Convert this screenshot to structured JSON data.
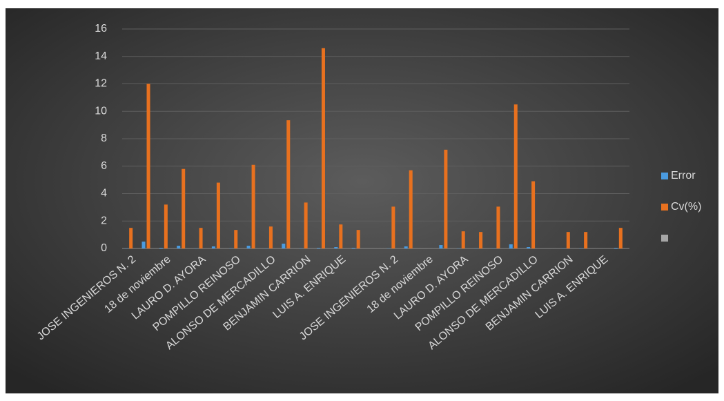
{
  "chart_data": {
    "type": "bar",
    "categories": [
      "JOSE INGENIEROS N. 2",
      null,
      "18 de noviembre",
      null,
      "LAURO D. AYORA",
      null,
      "POMPILLO REINOSO",
      null,
      "ALONSO DE MERCADILLO",
      null,
      "BENJAMIN  CARRION",
      null,
      "LUIS A. ENRIQUE",
      null,
      null,
      "JOSE INGENIEROS N. 2",
      null,
      "18 de noviembre",
      null,
      "LAURO D. AYORA",
      null,
      "POMPILLO REINOSO",
      null,
      "ALONSO DE MERCADILLO",
      null,
      "BENJAMIN  CARRION",
      null,
      "LUIS A. ENRIQUE",
      null
    ],
    "series": [
      {
        "name": "Error",
        "color": "#4a9be0",
        "values": [
          0.02,
          0.5,
          0.05,
          0.2,
          0.02,
          0.15,
          0.02,
          0.2,
          0.02,
          0.35,
          0.02,
          0.05,
          0.1,
          0.05,
          null,
          0.02,
          0.15,
          null,
          0.25,
          0.02,
          0.02,
          0.02,
          0.3,
          0.1,
          null,
          0.02,
          0.02,
          null,
          0.05
        ]
      },
      {
        "name": "Cv(%)",
        "color": "#e8711f",
        "values": [
          1.5,
          12.0,
          3.2,
          5.8,
          1.5,
          4.8,
          1.35,
          6.1,
          1.6,
          9.35,
          3.35,
          14.6,
          1.75,
          1.35,
          null,
          3.05,
          5.7,
          null,
          7.2,
          1.25,
          1.2,
          3.05,
          10.5,
          4.9,
          null,
          1.2,
          1.2,
          null,
          1.5
        ]
      },
      {
        "color": "#a6a6a6",
        "values": [
          null,
          null,
          null,
          null,
          null,
          null,
          null,
          null,
          null,
          null,
          null,
          null,
          null,
          null,
          null,
          null,
          null,
          null,
          null,
          null,
          null,
          null,
          null,
          null,
          null,
          null,
          null,
          null,
          null
        ]
      }
    ],
    "ylim": [
      0,
      16
    ],
    "yticks": [
      0,
      2,
      4,
      6,
      8,
      10,
      12,
      14,
      16
    ],
    "grid": true,
    "legend": "right"
  }
}
